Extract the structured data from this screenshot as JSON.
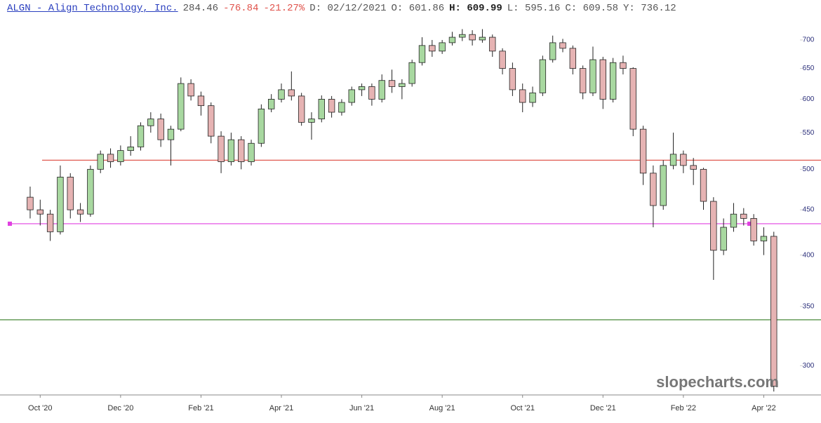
{
  "header": {
    "title": "ALGN - Align Technology, Inc.",
    "last": "284.46",
    "change": "-76.84",
    "change_pct": "-21.27%",
    "stats": [
      "D: 02/12/2021",
      "O: 601.86",
      "H: 609.99",
      "L: 595.16",
      "C: 609.58",
      "Y: 736.12"
    ]
  },
  "watermark": "slopecharts.com",
  "chart_data": {
    "type": "candlestick",
    "log_scale": true,
    "up_color": "#a8d8a0",
    "down_color": "#e6b3b3",
    "x": [
      -0.25,
      0,
      0.25,
      0.5,
      0.75,
      1,
      1.25,
      1.5,
      1.75,
      2,
      2.25,
      2.5,
      2.75,
      3,
      3.25,
      3.5,
      3.75,
      4,
      4.25,
      4.5,
      4.75,
      5,
      5.25,
      5.5,
      5.75,
      6,
      6.25,
      6.5,
      6.75,
      7,
      7.25,
      7.5,
      7.75,
      8,
      8.25,
      8.5,
      8.75,
      9,
      9.25,
      9.5,
      9.75,
      10,
      10.25,
      10.5,
      10.75,
      11,
      11.25,
      11.5,
      11.75,
      12,
      12.25,
      12.5,
      12.75,
      13,
      13.25,
      13.5,
      13.75,
      14,
      14.25,
      14.5,
      14.75,
      15,
      15.25,
      15.5,
      15.75,
      16,
      16.25,
      16.5,
      16.75,
      17,
      17.25,
      17.5,
      17.75,
      18,
      18.25
    ],
    "open": [
      465,
      450,
      445,
      425,
      490,
      450,
      445,
      500,
      520,
      510,
      525,
      530,
      560,
      570,
      540,
      555,
      625,
      605,
      590,
      545,
      510,
      540,
      510,
      535,
      585,
      600,
      615,
      605,
      565,
      570,
      600,
      580,
      595,
      615,
      620,
      600,
      630,
      620,
      625,
      660,
      690,
      680,
      695,
      705,
      710,
      700,
      705,
      680,
      650,
      615,
      595,
      610,
      665,
      695,
      685,
      650,
      610,
      665,
      600,
      660,
      650,
      555,
      495,
      455,
      505,
      520,
      505,
      500,
      460,
      405,
      430,
      445,
      440,
      415,
      420
    ],
    "high": [
      478,
      462,
      450,
      505,
      495,
      458,
      505,
      525,
      528,
      532,
      545,
      565,
      580,
      578,
      560,
      635,
      632,
      612,
      595,
      552,
      550,
      545,
      540,
      592,
      608,
      625,
      645,
      610,
      580,
      606,
      605,
      600,
      620,
      625,
      625,
      640,
      648,
      632,
      665,
      705,
      700,
      700,
      715,
      720,
      718,
      720,
      710,
      685,
      660,
      625,
      620,
      672,
      708,
      702,
      690,
      655,
      688,
      670,
      668,
      672,
      652,
      560,
      505,
      512,
      550,
      525,
      515,
      502,
      465,
      440,
      458,
      452,
      445,
      430,
      425
    ],
    "low": [
      440,
      432,
      415,
      422,
      440,
      436,
      442,
      495,
      502,
      505,
      518,
      525,
      550,
      530,
      505,
      552,
      598,
      575,
      535,
      495,
      505,
      500,
      505,
      530,
      580,
      595,
      598,
      560,
      540,
      565,
      572,
      575,
      590,
      605,
      590,
      595,
      610,
      600,
      620,
      655,
      670,
      675,
      690,
      698,
      690,
      695,
      670,
      640,
      605,
      580,
      588,
      605,
      660,
      678,
      640,
      600,
      605,
      585,
      595,
      640,
      545,
      480,
      430,
      450,
      500,
      495,
      480,
      450,
      375,
      400,
      425,
      432,
      410,
      400,
      280.5
    ],
    "close": [
      450,
      445,
      425,
      490,
      450,
      445,
      500,
      520,
      510,
      525,
      530,
      560,
      570,
      540,
      555,
      625,
      605,
      590,
      545,
      510,
      540,
      510,
      535,
      585,
      600,
      615,
      605,
      565,
      570,
      600,
      580,
      595,
      615,
      620,
      600,
      630,
      620,
      625,
      660,
      690,
      680,
      695,
      705,
      710,
      700,
      705,
      680,
      650,
      615,
      595,
      610,
      665,
      695,
      685,
      650,
      610,
      665,
      600,
      660,
      650,
      555,
      495,
      455,
      505,
      520,
      505,
      500,
      460,
      405,
      430,
      445,
      440,
      415,
      420,
      284.46
    ],
    "xlim": [
      -1,
      18.9
    ],
    "xticks": [
      {
        "value": 0,
        "label": "Oct '20"
      },
      {
        "value": 2,
        "label": "Dec '20"
      },
      {
        "value": 4,
        "label": "Feb '21"
      },
      {
        "value": 6,
        "label": "Apr '21"
      },
      {
        "value": 8,
        "label": "Jun '21"
      },
      {
        "value": 10,
        "label": "Aug '21"
      },
      {
        "value": 12,
        "label": "Oct '21"
      },
      {
        "value": 14,
        "label": "Dec '21"
      },
      {
        "value": 16,
        "label": "Feb '22"
      },
      {
        "value": 18,
        "label": "Apr '22"
      }
    ],
    "ylim": [
      278,
      738
    ],
    "yticks": [
      300,
      350,
      400,
      450,
      500,
      550,
      600,
      650,
      700
    ],
    "hlines": [
      {
        "value": 512,
        "color": "#e05a50"
      },
      {
        "value": 434,
        "color": "#e040e0"
      },
      {
        "value": 338,
        "color": "#4a8a3a"
      }
    ]
  }
}
